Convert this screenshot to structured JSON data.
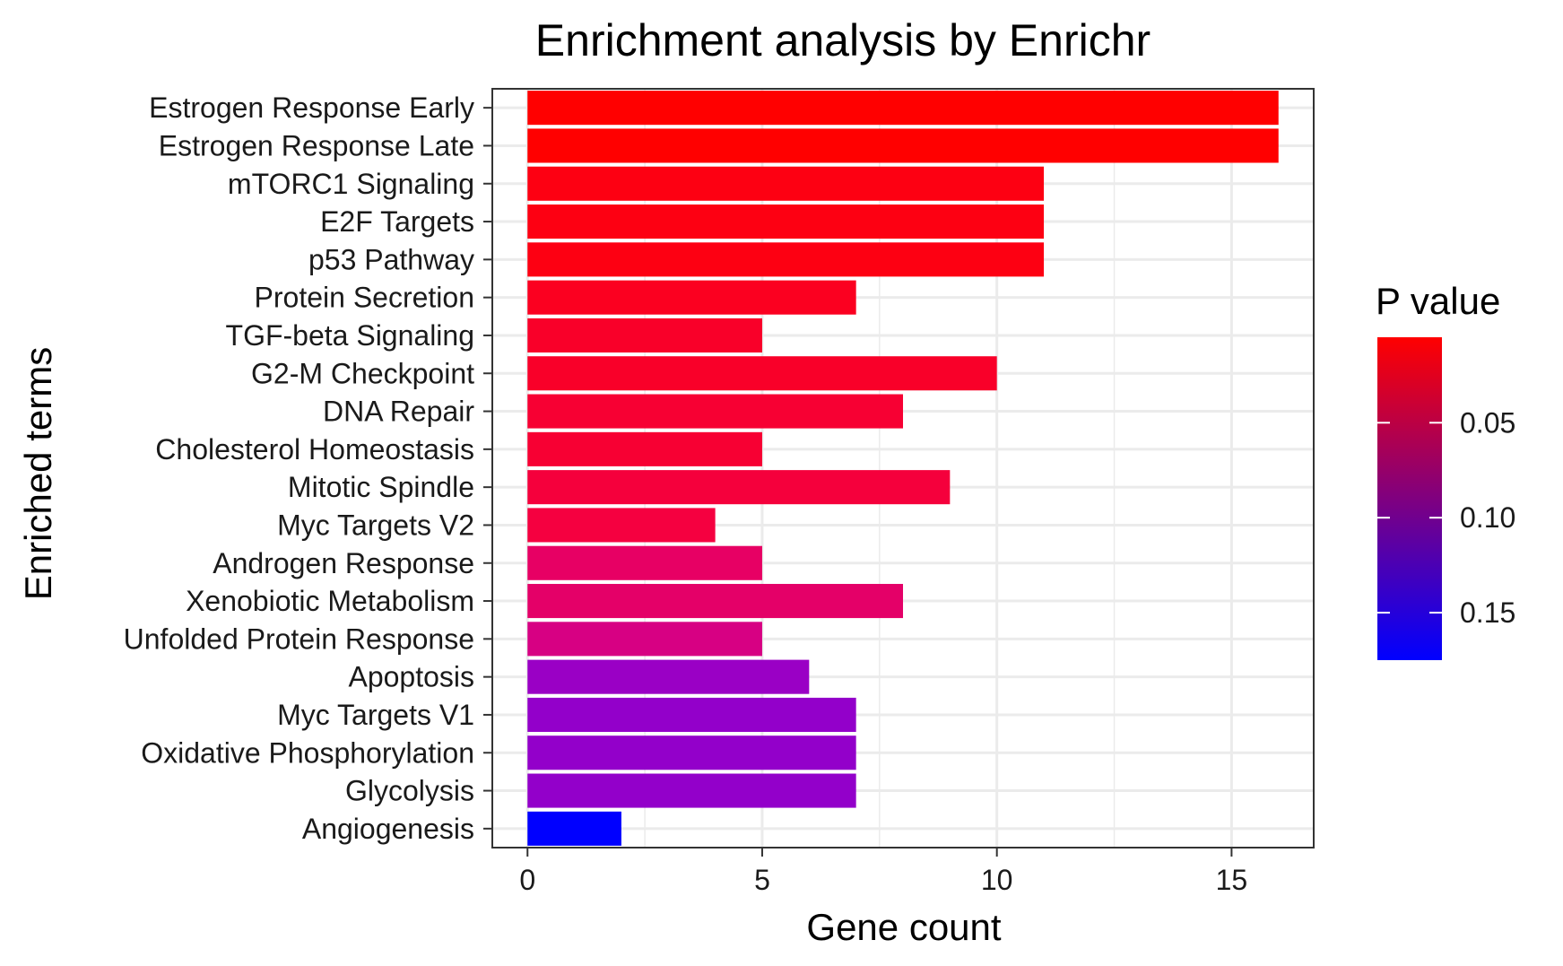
{
  "chart_data": {
    "type": "bar",
    "orientation": "horizontal",
    "title": "Enrichment analysis by Enrichr",
    "xlabel": "Gene count",
    "ylabel": "Enriched terms",
    "xlim": [
      -0.75,
      16.75
    ],
    "x_ticks": [
      0,
      5,
      10,
      15
    ],
    "x_tick_labels": [
      "0",
      "5",
      "10",
      "15"
    ],
    "grid": true,
    "categories": [
      "Estrogen Response Early",
      "Estrogen Response Late",
      "mTORC1 Signaling",
      "E2F Targets",
      "p53 Pathway",
      "Protein Secretion",
      "TGF-beta Signaling",
      "G2-M Checkpoint",
      "DNA Repair",
      "Cholesterol Homeostasis",
      "Mitotic Spindle",
      "Myc Targets V2",
      "Androgen Response",
      "Xenobiotic Metabolism",
      "Unfolded Protein Response",
      "Apoptosis",
      "Myc Targets V1",
      "Oxidative Phosphorylation",
      "Glycolysis",
      "Angiogenesis"
    ],
    "values": [
      16,
      16,
      11,
      11,
      11,
      7,
      5,
      10,
      8,
      5,
      9,
      4,
      5,
      8,
      5,
      6,
      7,
      7,
      7,
      2
    ],
    "bar_colors": [
      "#ff0000",
      "#ff0000",
      "#fd0012",
      "#fd0012",
      "#fd0012",
      "#fb0020",
      "#f90029",
      "#f90029",
      "#f70033",
      "#f70033",
      "#f5003c",
      "#f50040",
      "#e70064",
      "#e40068",
      "#d70083",
      "#9a00c5",
      "#9300ca",
      "#9300ca",
      "#9300ca",
      "#0000ff"
    ],
    "legend": {
      "title": "P value",
      "placement": "right",
      "gradient_colors": [
        "#0000ff",
        "#ff0000"
      ],
      "ticks": [
        0.05,
        0.1,
        0.15
      ],
      "tick_labels": [
        "0.05",
        "0.10",
        "0.15"
      ],
      "range_low_to_high": [
        0.005,
        0.175
      ]
    }
  }
}
